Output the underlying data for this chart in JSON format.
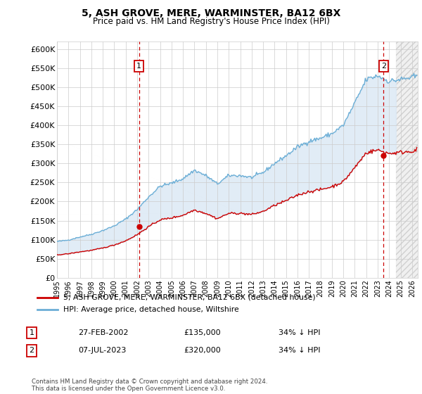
{
  "title": "5, ASH GROVE, MERE, WARMINSTER, BA12 6BX",
  "subtitle": "Price paid vs. HM Land Registry's House Price Index (HPI)",
  "ylabel_ticks": [
    "£0",
    "£50K",
    "£100K",
    "£150K",
    "£200K",
    "£250K",
    "£300K",
    "£350K",
    "£400K",
    "£450K",
    "£500K",
    "£550K",
    "£600K"
  ],
  "ylim": [
    0,
    620000
  ],
  "xlim_start": 1995.0,
  "xlim_end": 2026.5,
  "background_color": "#dce9f5",
  "hpi_color": "#6baed6",
  "price_color": "#cc0000",
  "vline_color": "#cc0000",
  "marker1_x": 2002.16,
  "marker1_y": 135000,
  "marker2_x": 2023.52,
  "marker2_y": 320000,
  "legend_label1": "5, ASH GROVE, MERE, WARMINSTER, BA12 6BX (detached house)",
  "legend_label2": "HPI: Average price, detached house, Wiltshire",
  "table_row1": [
    "1",
    "27-FEB-2002",
    "£135,000",
    "34% ↓ HPI"
  ],
  "table_row2": [
    "2",
    "07-JUL-2023",
    "£320,000",
    "34% ↓ HPI"
  ],
  "footer": "Contains HM Land Registry data © Crown copyright and database right 2024.\nThis data is licensed under the Open Government Licence v3.0.",
  "future_start": 2024.58,
  "hpi_annual": {
    "1995": 95000,
    "1996": 99000,
    "1997": 107000,
    "1998": 114000,
    "1999": 124000,
    "2000": 136000,
    "2001": 154000,
    "2002": 179000,
    "2003": 212000,
    "2004": 240000,
    "2005": 248000,
    "2006": 260000,
    "2007": 282000,
    "2008": 268000,
    "2009": 246000,
    "2010": 268000,
    "2011": 268000,
    "2012": 263000,
    "2013": 276000,
    "2014": 300000,
    "2015": 320000,
    "2016": 343000,
    "2017": 358000,
    "2018": 366000,
    "2019": 378000,
    "2020": 400000,
    "2021": 458000,
    "2022": 520000,
    "2023": 530000,
    "2024": 515000,
    "2025": 520000,
    "2026": 525000
  },
  "price_annual": {
    "1995": 60000,
    "1996": 63000,
    "1997": 68000,
    "1998": 72000,
    "1999": 78000,
    "2000": 86000,
    "2001": 97000,
    "2002": 113000,
    "2003": 134000,
    "2004": 152000,
    "2005": 157000,
    "2006": 164000,
    "2007": 178000,
    "2008": 169000,
    "2009": 155000,
    "2010": 169000,
    "2011": 169000,
    "2012": 166000,
    "2013": 174000,
    "2014": 190000,
    "2015": 202000,
    "2016": 217000,
    "2017": 226000,
    "2018": 231000,
    "2019": 239000,
    "2020": 252000,
    "2021": 289000,
    "2022": 328000,
    "2023": 335000,
    "2024": 326000,
    "2025": 329000,
    "2026": 332000
  }
}
